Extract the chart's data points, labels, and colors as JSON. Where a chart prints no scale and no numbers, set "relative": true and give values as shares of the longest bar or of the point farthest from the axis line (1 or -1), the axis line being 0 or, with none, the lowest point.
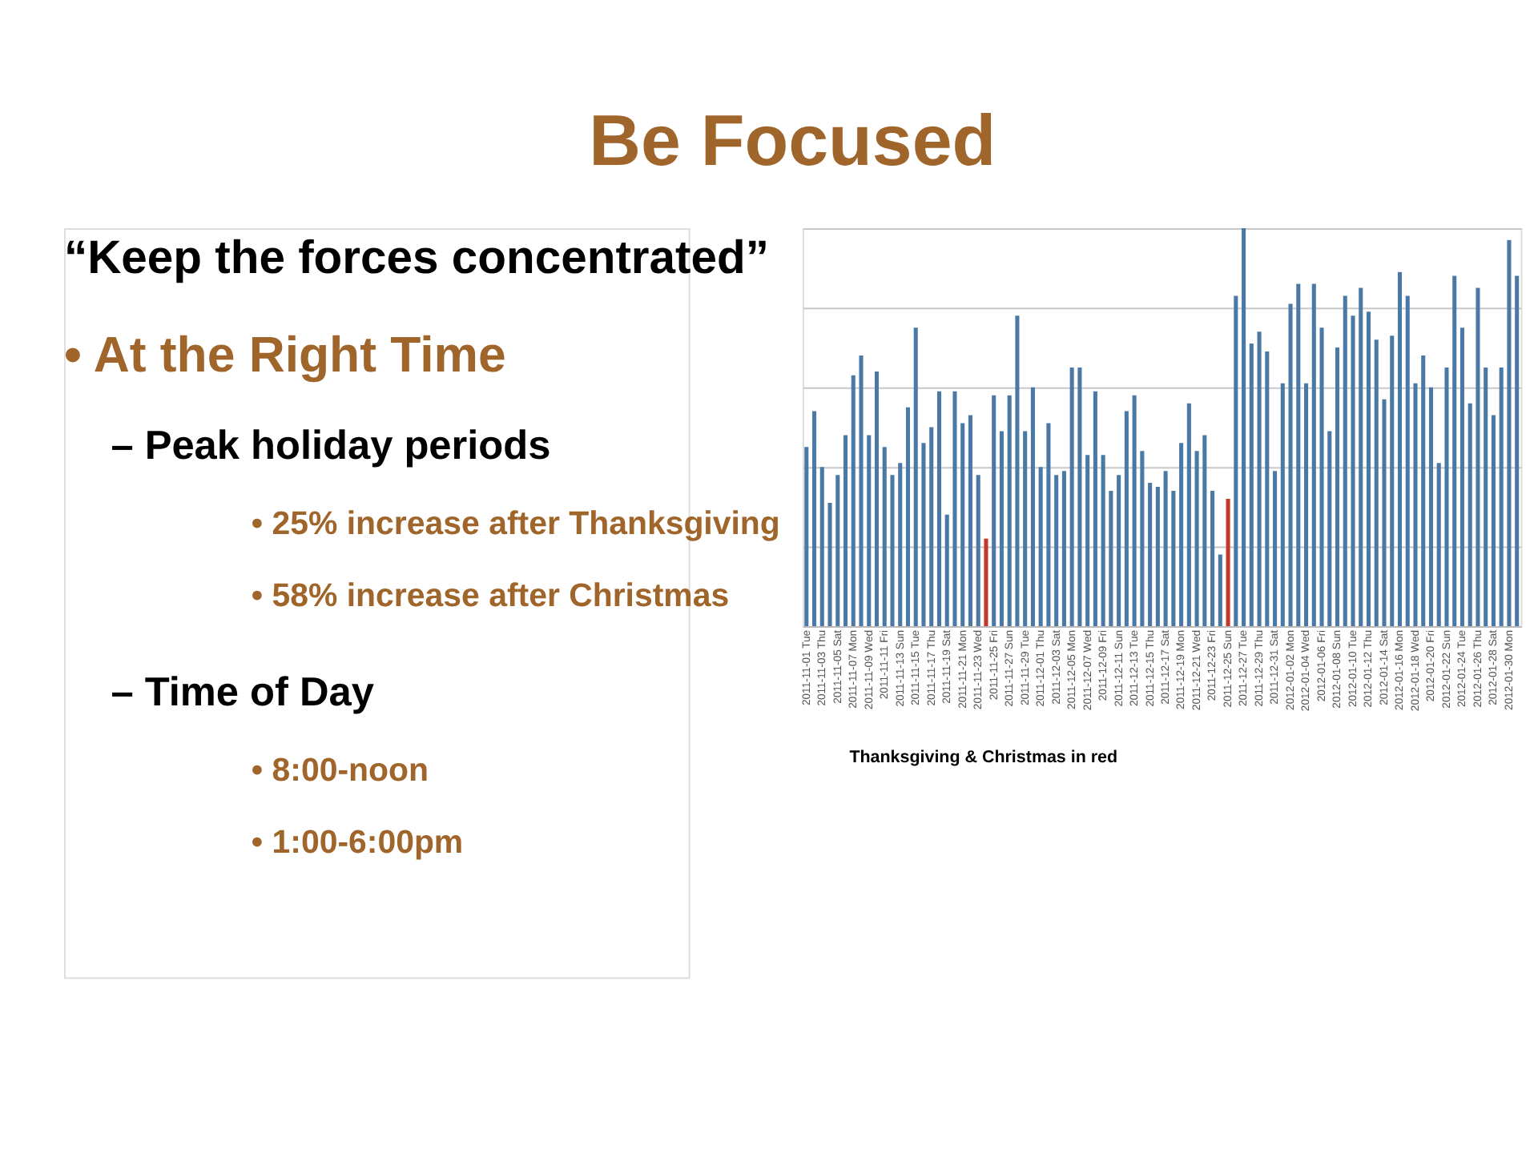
{
  "chart_data": {
    "type": "bar",
    "title": "Be Focused",
    "relative": true,
    "grid": "y",
    "annotations": [
      "“Keep the forces concentrated”",
      "• At the Right Time",
      "– Peak holiday periods",
      "• 25% increase after Thanksgiving",
      "• 58% increase after Christmas",
      "– Time of Day",
      "• 8:00-noon",
      "• 1:00-6:00pm",
      "Thanksgiving & Christmas in red"
    ],
    "categories": [
      "2011-11-01 Tue",
      null,
      "2011-11-03 Thu",
      null,
      "2011-11-05 Sat",
      null,
      "2011-11-07 Mon",
      null,
      "2011-11-09 Wed",
      null,
      "2011-11-11 Fri",
      null,
      "2011-11-13 Sun",
      null,
      "2011-11-15 Tue",
      null,
      "2011-11-17 Thu",
      null,
      "2011-11-19 Sat",
      null,
      "2011-11-21 Mon",
      null,
      "2011-11-23 Wed",
      null,
      "2011-11-25 Fri",
      null,
      "2011-11-27 Sun",
      null,
      "2011-11-29 Tue",
      null,
      "2011-12-01 Thu",
      null,
      "2011-12-03 Sat",
      null,
      "2011-12-05 Mon",
      null,
      "2011-12-07 Wed",
      null,
      "2011-12-09 Fri",
      null,
      "2011-12-11 Sun",
      null,
      "2011-12-13 Tue",
      null,
      "2011-12-15 Thu",
      null,
      "2011-12-17 Sat",
      null,
      "2011-12-19 Mon",
      null,
      "2011-12-21 Wed",
      null,
      "2011-12-23 Fri",
      null,
      "2011-12-25 Sun",
      null,
      "2011-12-27 Tue",
      null,
      "2011-12-29 Thu",
      null,
      "2011-12-31 Sat",
      null,
      "2012-01-02 Mon",
      null,
      "2012-01-04 Wed",
      null,
      "2012-01-06 Fri",
      null,
      "2012-01-08 Sun",
      null,
      "2012-01-10 Tue",
      null,
      "2012-01-12 Thu",
      null,
      "2012-01-14 Sat",
      null,
      "2012-01-16 Mon",
      null,
      "2012-01-18 Wed",
      null,
      "2012-01-20 Fri",
      null,
      "2012-01-22 Sun",
      null,
      "2012-01-24 Tue",
      null,
      "2012-01-26 Thu",
      null,
      "2012-01-28 Sat",
      null,
      "2012-01-30 Mon",
      null
    ],
    "values": [
      0.45,
      0.54,
      0.4,
      0.31,
      0.38,
      0.48,
      0.63,
      0.68,
      0.48,
      0.64,
      0.45,
      0.38,
      0.41,
      0.55,
      0.75,
      0.46,
      0.5,
      0.59,
      0.28,
      0.59,
      0.51,
      0.53,
      0.38,
      0.22,
      0.58,
      0.49,
      0.58,
      0.78,
      0.49,
      0.6,
      0.4,
      0.51,
      0.38,
      0.39,
      0.65,
      0.65,
      0.43,
      0.59,
      0.43,
      0.34,
      0.38,
      0.54,
      0.58,
      0.44,
      0.36,
      0.35,
      0.39,
      0.34,
      0.46,
      0.56,
      0.44,
      0.48,
      0.34,
      0.18,
      0.32,
      0.83,
      1,
      0.71,
      0.74,
      0.69,
      0.39,
      0.61,
      0.81,
      0.86,
      0.61,
      0.86,
      0.75,
      0.49,
      0.7,
      0.83,
      0.78,
      0.85,
      0.79,
      0.72,
      0.57,
      0.73,
      0.89,
      0.83,
      0.61,
      0.68,
      0.6,
      0.41,
      0.65,
      0.88,
      0.75,
      0.56,
      0.85,
      0.65,
      0.53,
      0.65,
      0.97,
      0.88
    ],
    "colors": [
      "#4a79a5",
      "#4a79a5",
      "#4a79a5",
      "#4a79a5",
      "#4a79a5",
      "#4a79a5",
      "#4a79a5",
      "#4a79a5",
      "#4a79a5",
      "#4a79a5",
      "#4a79a5",
      "#4a79a5",
      "#4a79a5",
      "#4a79a5",
      "#4a79a5",
      "#4a79a5",
      "#4a79a5",
      "#4a79a5",
      "#4a79a5",
      "#4a79a5",
      "#4a79a5",
      "#4a79a5",
      "#4a79a5",
      "#c0392b",
      "#4a79a5",
      "#4a79a5",
      "#4a79a5",
      "#4a79a5",
      "#4a79a5",
      "#4a79a5",
      "#4a79a5",
      "#4a79a5",
      "#4a79a5",
      "#4a79a5",
      "#4a79a5",
      "#4a79a5",
      "#4a79a5",
      "#4a79a5",
      "#4a79a5",
      "#4a79a5",
      "#4a79a5",
      "#4a79a5",
      "#4a79a5",
      "#4a79a5",
      "#4a79a5",
      "#4a79a5",
      "#4a79a5",
      "#4a79a5",
      "#4a79a5",
      "#4a79a5",
      "#4a79a5",
      "#4a79a5",
      "#4a79a5",
      "#4a79a5",
      "#c0392b",
      "#4a79a5",
      "#4a79a5",
      "#4a79a5",
      "#4a79a5",
      "#4a79a5",
      "#4a79a5",
      "#4a79a5",
      "#4a79a5",
      "#4a79a5",
      "#4a79a5",
      "#4a79a5",
      "#4a79a5",
      "#4a79a5",
      "#4a79a5",
      "#4a79a5",
      "#4a79a5",
      "#4a79a5",
      "#4a79a5",
      "#4a79a5",
      "#4a79a5",
      "#4a79a5",
      "#4a79a5",
      "#4a79a5",
      "#4a79a5",
      "#4a79a5",
      "#4a79a5",
      "#4a79a5",
      "#4a79a5",
      "#4a79a5",
      "#4a79a5",
      "#4a79a5",
      "#4a79a5",
      "#4a79a5",
      "#4a79a5",
      "#4a79a5",
      "#4a79a5",
      "#4a79a5"
    ]
  }
}
